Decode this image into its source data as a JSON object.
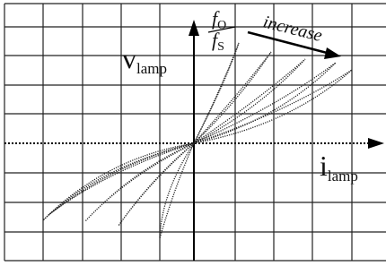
{
  "labels": {
    "voltage": {
      "symbol": "v",
      "subscript": "lamp"
    },
    "current": {
      "symbol": "i",
      "subscript": "lamp"
    },
    "ratio": {
      "numerator": {
        "symbol": "f",
        "subscript": "O"
      },
      "denominator": {
        "symbol": "f",
        "subscript": "S"
      }
    },
    "trend": "increase"
  }
}
